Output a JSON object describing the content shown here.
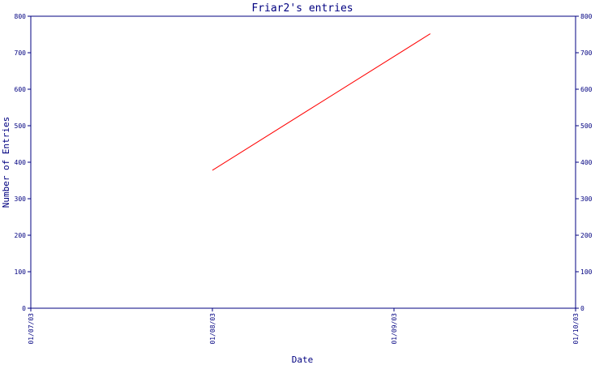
{
  "chart_data": {
    "type": "line",
    "title": "Friar2's entries",
    "xlabel": "Date",
    "ylabel": "Number of Entries",
    "x_ticks": [
      "01/07/03",
      "01/08/03",
      "01/09/03",
      "01/10/03"
    ],
    "y_ticks": [
      "0",
      "100",
      "200",
      "300",
      "400",
      "500",
      "600",
      "700",
      "800"
    ],
    "ylim": [
      0,
      800
    ],
    "xlim": [
      "01/07/03",
      "01/10/03"
    ],
    "series": [
      {
        "color": "#ff0000",
        "points": [
          {
            "x": "01/08/03",
            "y": 378
          },
          {
            "x": "01/09/03 +20%",
            "y": 752
          }
        ]
      }
    ],
    "grid": false,
    "legend": "none",
    "axis_color": "#000080",
    "right_axis_mirrors_left": true
  }
}
